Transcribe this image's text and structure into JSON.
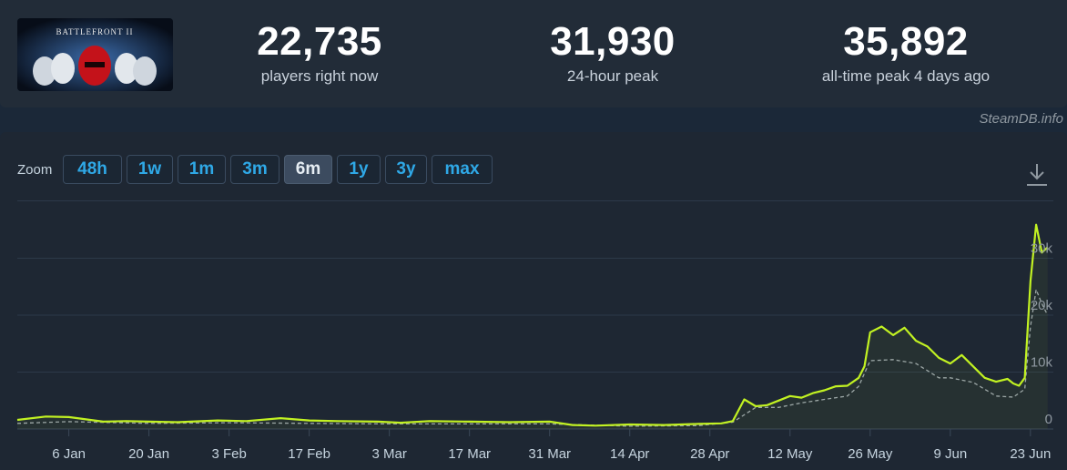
{
  "stats": [
    {
      "value": "22,735",
      "label": "players right now"
    },
    {
      "value": "31,930",
      "label": "24-hour peak"
    },
    {
      "value": "35,892",
      "label": "all-time peak 4 days ago"
    }
  ],
  "brand": "SteamDB.info",
  "zoom": {
    "label": "Zoom",
    "options": [
      "48h",
      "1w",
      "1m",
      "3m",
      "6m",
      "1y",
      "3y",
      "max"
    ],
    "active": "6m"
  },
  "colors": {
    "players_line": "#c2f222",
    "average_line": "#9aa4ad",
    "accent_blue": "#2fa8e6"
  },
  "chart_data": {
    "type": "line",
    "title": "",
    "xlabel": "",
    "ylabel": "",
    "x_ticks": [
      "6 Jan",
      "20 Jan",
      "3 Feb",
      "17 Feb",
      "3 Mar",
      "17 Mar",
      "31 Mar",
      "14 Apr",
      "28 Apr",
      "12 May",
      "26 May",
      "9 Jun",
      "23 Jun"
    ],
    "y_ticks": [
      0,
      10000,
      20000,
      30000
    ],
    "y_tick_labels": [
      "0",
      "10k",
      "20k",
      "30k"
    ],
    "ylim": [
      0,
      37000
    ],
    "x_range": [
      "2024-12-28",
      "2025-06-27"
    ],
    "grid": true,
    "series": [
      {
        "style": "solid",
        "x": [
          "2024-12-28",
          "2025-01-02",
          "2025-01-06",
          "2025-01-12",
          "2025-01-16",
          "2025-01-20",
          "2025-01-25",
          "2025-02-01",
          "2025-02-06",
          "2025-02-12",
          "2025-02-17",
          "2025-02-22",
          "2025-03-01",
          "2025-03-05",
          "2025-03-10",
          "2025-03-17",
          "2025-03-24",
          "2025-03-31",
          "2025-04-04",
          "2025-04-08",
          "2025-04-14",
          "2025-04-20",
          "2025-04-26",
          "2025-04-30",
          "2025-05-02",
          "2025-05-04",
          "2025-05-06",
          "2025-05-08",
          "2025-05-10",
          "2025-05-12",
          "2025-05-14",
          "2025-05-16",
          "2025-05-18",
          "2025-05-20",
          "2025-05-22",
          "2025-05-24",
          "2025-05-25",
          "2025-05-26",
          "2025-05-28",
          "2025-05-30",
          "2025-06-01",
          "2025-06-03",
          "2025-06-05",
          "2025-06-07",
          "2025-06-09",
          "2025-06-11",
          "2025-06-13",
          "2025-06-15",
          "2025-06-17",
          "2025-06-19",
          "2025-06-20",
          "2025-06-21",
          "2025-06-22",
          "2025-06-23",
          "2025-06-24",
          "2025-06-25",
          "2025-06-26"
        ],
        "values": [
          1600,
          2200,
          2100,
          1300,
          1400,
          1300,
          1200,
          1500,
          1400,
          1900,
          1500,
          1400,
          1300,
          1100,
          1400,
          1300,
          1200,
          1300,
          700,
          600,
          800,
          700,
          900,
          1000,
          1400,
          5200,
          4000,
          4200,
          5000,
          5800,
          5500,
          6300,
          6800,
          7500,
          7600,
          9000,
          11000,
          17000,
          18000,
          16500,
          17800,
          15500,
          14500,
          12500,
          11500,
          13000,
          11000,
          9000,
          8300,
          8800,
          8000,
          7600,
          9000,
          26000,
          35892,
          31000,
          31930
        ]
      },
      {
        "style": "dashed",
        "x": [
          "2024-12-28",
          "2025-01-06",
          "2025-01-20",
          "2025-02-03",
          "2025-02-17",
          "2025-03-03",
          "2025-03-17",
          "2025-03-31",
          "2025-04-14",
          "2025-04-26",
          "2025-05-02",
          "2025-05-06",
          "2025-05-10",
          "2025-05-14",
          "2025-05-18",
          "2025-05-22",
          "2025-05-24",
          "2025-05-26",
          "2025-05-30",
          "2025-06-03",
          "2025-06-07",
          "2025-06-09",
          "2025-06-13",
          "2025-06-17",
          "2025-06-20",
          "2025-06-22",
          "2025-06-23",
          "2025-06-24",
          "2025-06-25",
          "2025-06-26"
        ],
        "values": [
          1000,
          1300,
          1000,
          1100,
          1000,
          900,
          900,
          900,
          500,
          600,
          1200,
          3800,
          3800,
          4600,
          5200,
          5800,
          7500,
          12000,
          12200,
          11500,
          9000,
          9000,
          8200,
          5800,
          5600,
          7000,
          18000,
          24500,
          22000,
          20000
        ]
      }
    ]
  }
}
